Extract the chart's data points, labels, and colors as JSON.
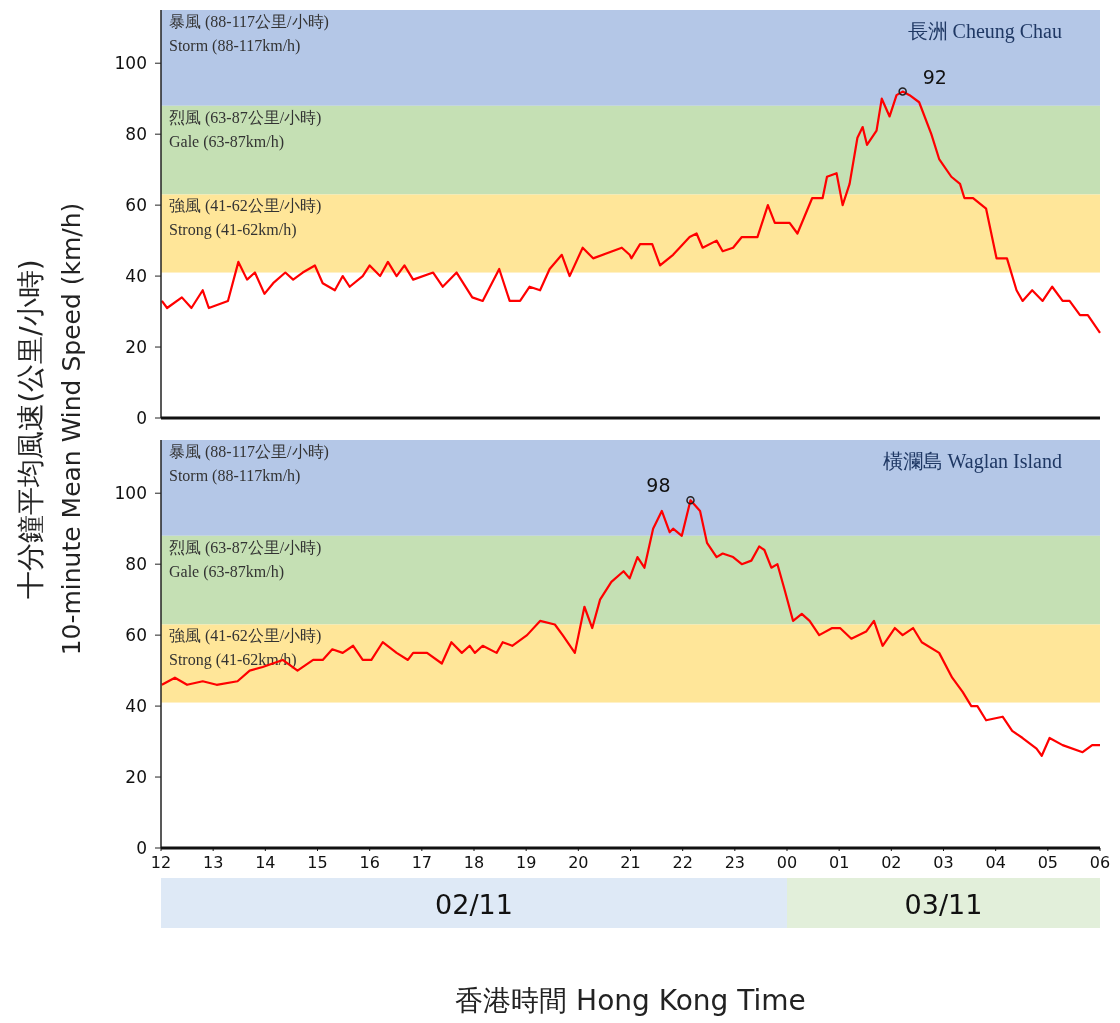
{
  "chart_data": [
    {
      "type": "line",
      "ylabel": "十分鐘平均風速(公里/小時)\n10-minute Mean Wind Speed (km/h)",
      "tick_labels": "y",
      "xlim": [
        "--11-02T12:00",
        "--11-03T06:00"
      ],
      "ylim": [
        0,
        115
      ],
      "yticks": [
        0,
        20,
        40,
        60,
        80,
        100
      ],
      "bands": [
        {
          "axis": "y",
          "from": 88,
          "to": 115,
          "label": "暴風 (88-117公里/小時)\nStorm (88-117km/h)",
          "color": "#b4c7e7"
        },
        {
          "axis": "y",
          "from": 63,
          "to": 88,
          "label": "烈風 (63-87公里/小時)\nGale (63-87km/h)",
          "color": "#c5e0b4"
        },
        {
          "axis": "y",
          "from": 41,
          "to": 63,
          "label": "強風 (41-62公里/小時)\nStrong (41-62km/h)",
          "color": "#ffe699"
        }
      ],
      "annotations": [
        "長洲 Cheung Chau",
        {
          "text": "92",
          "x": "--11-03T02:13",
          "y": 92
        }
      ],
      "series": [
        {
          "color": "#ff0000",
          "x": [
            "--11-02T12:01",
            "--11-02T12:07",
            "--11-02T12:24",
            "--11-02T12:35",
            "--11-02T12:48",
            "--11-02T12:55",
            "--11-02T13:17",
            "--11-02T13:29",
            "--11-02T13:39",
            "--11-02T13:48",
            "--11-02T13:59",
            "--11-02T14:09",
            "--11-02T14:23",
            "--11-02T14:32",
            "--11-02T14:43",
            "--11-02T14:57",
            "--11-02T15:06",
            "--11-02T15:20",
            "--11-02T15:29",
            "--11-02T15:37",
            "--11-02T15:52",
            "--11-02T16:00",
            "--11-02T16:12",
            "--11-02T16:21",
            "--11-02T16:31",
            "--11-02T16:40",
            "--11-02T16:50",
            "--11-02T17:13",
            "--11-02T17:24",
            "--11-02T17:40",
            "--11-02T17:58",
            "--11-02T18:10",
            "--11-02T18:29",
            "--11-02T18:41",
            "--11-02T18:53",
            "--11-02T19:04",
            "--11-02T19:16",
            "--11-02T19:27",
            "--11-02T19:41",
            "--11-02T19:50",
            "--11-02T20:05",
            "--11-02T20:17",
            "--11-02T20:50",
            "--11-02T20:59",
            "--11-02T21:01",
            "--11-02T21:11",
            "--11-02T21:25",
            "--11-02T21:34",
            "--11-02T21:49",
            "--11-02T22:08",
            "--11-02T22:16",
            "--11-02T22:23",
            "--11-02T22:39",
            "--11-02T22:46",
            "--11-02T22:58",
            "--11-02T23:08",
            "--11-02T23:26",
            "--11-02T23:38",
            "--11-02T23:46",
            "--11-03T00:03",
            "--11-03T00:12",
            "--11-03T00:29",
            "--11-03T00:41",
            "--11-03T00:46",
            "--11-03T00:57",
            "--11-03T01:04",
            "--11-03T01:12",
            "--11-03T01:21",
            "--11-03T01:27",
            "--11-03T01:32",
            "--11-03T01:43",
            "--11-03T01:49",
            "--11-03T01:58",
            "--11-03T02:06",
            "--11-03T02:13",
            "--11-03T02:21",
            "--11-03T02:32",
            "--11-03T02:46",
            "--11-03T02:55",
            "--11-03T03:09",
            "--11-03T03:19",
            "--11-03T03:24",
            "--11-03T03:34",
            "--11-03T03:49",
            "--11-03T04:01",
            "--11-03T04:13",
            "--11-03T04:24",
            "--11-03T04:31",
            "--11-03T04:42",
            "--11-03T04:54",
            "--11-03T05:05",
            "--11-03T05:17",
            "--11-03T05:25",
            "--11-03T05:37",
            "--11-03T05:46",
            "--11-03T06:00"
          ],
          "values": [
            33,
            31,
            34,
            31,
            36,
            31,
            33,
            44,
            39,
            41,
            35,
            38,
            41,
            39,
            41,
            43,
            38,
            36,
            40,
            37,
            40,
            43,
            40,
            44,
            40,
            43,
            39,
            41,
            37,
            41,
            34,
            33,
            42,
            33,
            33,
            37,
            36,
            42,
            46,
            40,
            48,
            45,
            48,
            46,
            45,
            49,
            49,
            43,
            46,
            51,
            52,
            48,
            50,
            47,
            48,
            51,
            51,
            60,
            55,
            55,
            52,
            62,
            62,
            68,
            69,
            60,
            66,
            79,
            82,
            77,
            81,
            90,
            85,
            91,
            92,
            91,
            89,
            80,
            73,
            68,
            66,
            62,
            62,
            59,
            45,
            45,
            36,
            33,
            36,
            33,
            37,
            33,
            33,
            29,
            29,
            24
          ]
        }
      ]
    },
    {
      "type": "line",
      "xlabel": "香港時間  Hong Kong Time",
      "xlim": [
        "--11-02T12:00",
        "--11-03T06:00"
      ],
      "xticks": [
        {
          "value": "--11-02T12:00",
          "label": "12"
        },
        {
          "value": "--11-02T13:00",
          "label": "13"
        },
        {
          "value": "--11-02T14:00",
          "label": "14"
        },
        {
          "value": "--11-02T15:00",
          "label": "15"
        },
        {
          "value": "--11-02T16:00",
          "label": "16"
        },
        {
          "value": "--11-02T17:00",
          "label": "17"
        },
        {
          "value": "--11-02T18:00",
          "label": "18"
        },
        {
          "value": "--11-02T19:00",
          "label": "19"
        },
        {
          "value": "--11-02T20:00",
          "label": "20"
        },
        {
          "value": "--11-02T21:00",
          "label": "21"
        },
        {
          "value": "--11-02T22:00",
          "label": "22"
        },
        {
          "value": "--11-02T23:00",
          "label": "23"
        },
        {
          "value": "--11-03T00:00",
          "label": "00"
        },
        {
          "value": "--11-03T01:00",
          "label": "01"
        },
        {
          "value": "--11-03T02:00",
          "label": "02"
        },
        {
          "value": "--11-03T03:00",
          "label": "03"
        },
        {
          "value": "--11-03T04:00",
          "label": "04"
        },
        {
          "value": "--11-03T05:00",
          "label": "05"
        },
        {
          "value": "--11-03T06:00",
          "label": "06"
        }
      ],
      "ylim": [
        0,
        115
      ],
      "yticks": [
        0,
        20,
        40,
        60,
        80,
        100
      ],
      "bands": [
        {
          "axis": "y",
          "from": 88,
          "to": 115,
          "label": "暴風 (88-117公里/小時)\nStorm (88-117km/h)",
          "color": "#b4c7e7"
        },
        {
          "axis": "y",
          "from": 63,
          "to": 88,
          "label": "烈風 (63-87公里/小時)\nGale (63-87km/h)",
          "color": "#c5e0b4"
        },
        {
          "axis": "y",
          "from": 41,
          "to": 63,
          "label": "強風 (41-62公里/小時)\nStrong (41-62km/h)",
          "color": "#ffe699"
        }
      ],
      "annotations": [
        "橫瀾島 Waglan Island",
        {
          "text": "98",
          "x": "--11-02T22:09",
          "y": 98
        },
        "02/11",
        "03/11"
      ],
      "series": [
        {
          "color": "#ff0000",
          "x": [
            "--11-02T12:01",
            "--11-02T12:16",
            "--11-02T12:30",
            "--11-02T12:48",
            "--11-02T13:04",
            "--11-02T13:28",
            "--11-02T13:42",
            "--11-02T13:57",
            "--11-02T14:20",
            "--11-02T14:37",
            "--11-02T14:55",
            "--11-02T15:06",
            "--11-02T15:17",
            "--11-02T15:29",
            "--11-02T15:41",
            "--11-02T15:52",
            "--11-02T16:02",
            "--11-02T16:15",
            "--11-02T16:31",
            "--11-02T16:44",
            "--11-02T16:50",
            "--11-02T17:06",
            "--11-02T17:23",
            "--11-02T17:34",
            "--11-02T17:46",
            "--11-02T17:55",
            "--11-02T18:01",
            "--11-02T18:10",
            "--11-02T18:26",
            "--11-02T18:33",
            "--11-02T18:44",
            "--11-02T19:01",
            "--11-02T19:16",
            "--11-02T19:33",
            "--11-02T19:42",
            "--11-02T19:56",
            "--11-02T20:07",
            "--11-02T20:16",
            "--11-02T20:25",
            "--11-02T20:38",
            "--11-02T20:52",
            "--11-02T20:59",
            "--11-02T21:08",
            "--11-02T21:16",
            "--11-02T21:26",
            "--11-02T21:36",
            "--11-02T21:45",
            "--11-02T21:49",
            "--11-02T21:59",
            "--11-02T22:09",
            "--11-02T22:20",
            "--11-02T22:28",
            "--11-02T22:39",
            "--11-02T22:46",
            "--11-02T22:58",
            "--11-02T23:08",
            "--11-02T23:19",
            "--11-02T23:28",
            "--11-02T23:34",
            "--11-02T23:42",
            "--11-02T23:49",
            "--11-02T23:57",
            "--11-03T00:07",
            "--11-03T00:17",
            "--11-03T00:26",
            "--11-03T00:37",
            "--11-03T00:52",
            "--11-03T01:01",
            "--11-03T01:14",
            "--11-03T01:31",
            "--11-03T01:40",
            "--11-03T01:50",
            "--11-03T02:04",
            "--11-03T02:13",
            "--11-03T02:25",
            "--11-03T02:35",
            "--11-03T02:55",
            "--11-03T03:10",
            "--11-03T03:22",
            "--11-03T03:32",
            "--11-03T03:39",
            "--11-03T03:49",
            "--11-03T04:08",
            "--11-03T04:19",
            "--11-03T04:31",
            "--11-03T04:47",
            "--11-03T04:53",
            "--11-03T05:02",
            "--11-03T05:17",
            "--11-03T05:40",
            "--11-03T05:51",
            "--11-03T06:00"
          ],
          "values": [
            46,
            48,
            46,
            47,
            46,
            47,
            50,
            51,
            53,
            50,
            53,
            53,
            56,
            55,
            57,
            53,
            53,
            58,
            55,
            53,
            55,
            55,
            52,
            58,
            55,
            57,
            55,
            57,
            55,
            58,
            57,
            60,
            64,
            63,
            60,
            55,
            68,
            62,
            70,
            75,
            78,
            76,
            82,
            79,
            90,
            95,
            89,
            90,
            88,
            98,
            95,
            86,
            82,
            83,
            82,
            80,
            81,
            85,
            84,
            79,
            80,
            73,
            64,
            66,
            64,
            60,
            62,
            62,
            59,
            61,
            64,
            57,
            62,
            60,
            62,
            58,
            55,
            48,
            44,
            40,
            40,
            36,
            37,
            33,
            31,
            28,
            26,
            31,
            29,
            27,
            29,
            29
          ]
        }
      ]
    }
  ]
}
